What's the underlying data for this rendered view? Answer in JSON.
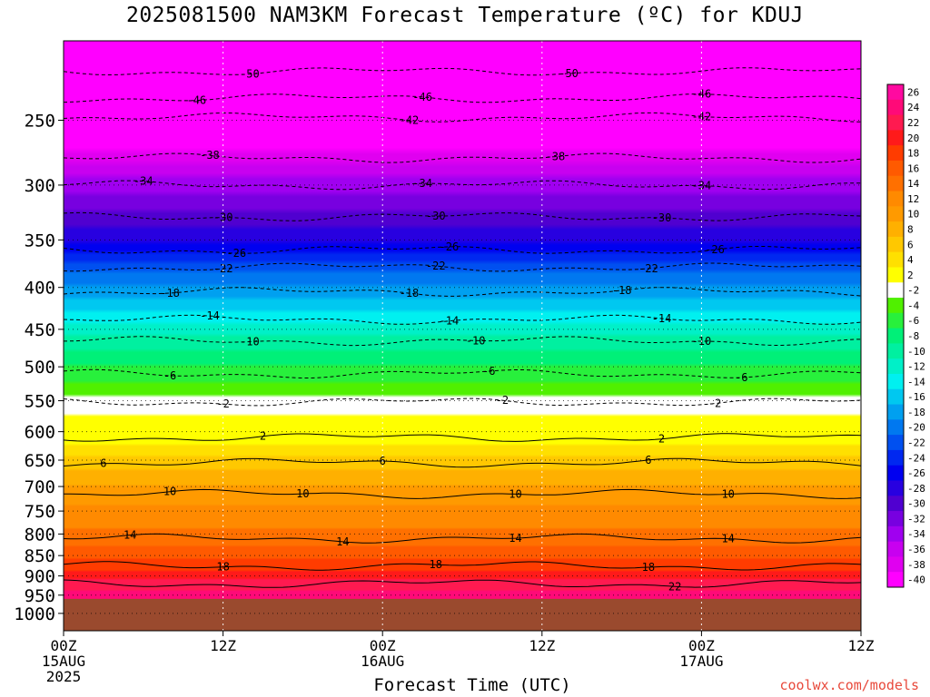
{
  "chart_data": {
    "type": "heatmap",
    "title": "2025081500 NAM3KM Forecast Temperature (ºC) for KDUJ",
    "xlabel": "Forecast Time (UTC)",
    "ylabel": "",
    "x_ticks": [
      {
        "line1": "00Z",
        "line2": "15AUG",
        "line3": "2025",
        "hour": 0
      },
      {
        "line1": "12Z",
        "line2": "",
        "line3": "",
        "hour": 12
      },
      {
        "line1": "00Z",
        "line2": "16AUG",
        "line3": "",
        "hour": 24
      },
      {
        "line1": "12Z",
        "line2": "",
        "line3": "",
        "hour": 36
      },
      {
        "line1": "00Z",
        "line2": "17AUG",
        "line3": "",
        "hour": 48
      },
      {
        "line1": "12Z",
        "line2": "",
        "line3": "",
        "hour": 60
      }
    ],
    "xlim_hours": [
      0,
      60
    ],
    "y_ticks": [
      250,
      300,
      350,
      400,
      450,
      500,
      550,
      600,
      650,
      700,
      750,
      800,
      850,
      900,
      950,
      1000
    ],
    "ylim_hpa": [
      200,
      1050
    ],
    "y_scale": "log-pressure",
    "ground_level_hpa": 960,
    "colorbar_labels": [
      26,
      24,
      22,
      20,
      18,
      16,
      14,
      12,
      10,
      8,
      6,
      4,
      2,
      -2,
      -4,
      -6,
      -8,
      -10,
      -12,
      -14,
      -16,
      -18,
      -20,
      -22,
      -24,
      -26,
      -28,
      -30,
      -32,
      -34,
      -36,
      -38,
      -40
    ],
    "colorbar_colors": [
      "#ff0aa0",
      "#ff0a78",
      "#ff1a50",
      "#ff1a1a",
      "#ff3c00",
      "#ff5a00",
      "#ff7000",
      "#ff8a00",
      "#ff9a00",
      "#ffb000",
      "#ffc800",
      "#ffe000",
      "#ffff00",
      "#ffffff",
      "#50f000",
      "#28f03c",
      "#00f078",
      "#00f0a0",
      "#00f0c8",
      "#00f0f0",
      "#00c8f0",
      "#00a0f0",
      "#0078f0",
      "#0050f0",
      "#0028f0",
      "#0000f0",
      "#2800e0",
      "#5000d0",
      "#7800e0",
      "#a000f0",
      "#c800f0",
      "#e000f0",
      "#ff00ff"
    ],
    "isotherms": [
      {
        "label": -50,
        "pressure": 218,
        "label_hours": [
          14,
          38
        ]
      },
      {
        "label": -46,
        "pressure": 235,
        "label_hours": [
          10,
          27,
          48
        ]
      },
      {
        "label": -42,
        "pressure": 248,
        "label_hours": [
          26,
          48
        ]
      },
      {
        "label": -38,
        "pressure": 278,
        "label_hours": [
          11,
          37
        ]
      },
      {
        "label": -34,
        "pressure": 300,
        "label_hours": [
          6,
          27,
          48
        ]
      },
      {
        "label": -30,
        "pressure": 328,
        "label_hours": [
          12,
          28,
          45
        ]
      },
      {
        "label": -26,
        "pressure": 360,
        "label_hours": [
          13,
          29,
          49
        ]
      },
      {
        "label": -22,
        "pressure": 378,
        "label_hours": [
          12,
          28,
          44
        ]
      },
      {
        "label": -18,
        "pressure": 405,
        "label_hours": [
          8,
          26,
          42
        ]
      },
      {
        "label": -14,
        "pressure": 438,
        "label_hours": [
          11,
          29,
          45
        ]
      },
      {
        "label": -10,
        "pressure": 465,
        "label_hours": [
          14,
          31,
          48
        ]
      },
      {
        "label": -6,
        "pressure": 510,
        "label_hours": [
          8,
          32,
          51
        ]
      },
      {
        "label": -2,
        "pressure": 552,
        "label_hours": [
          12,
          33,
          49
        ]
      },
      {
        "label": 2,
        "pressure": 610,
        "label_hours": [
          15,
          45
        ]
      },
      {
        "label": 6,
        "pressure": 655,
        "label_hours": [
          3,
          24,
          44
        ]
      },
      {
        "label": 10,
        "pressure": 715,
        "label_hours": [
          8,
          18,
          34,
          50
        ]
      },
      {
        "label": 14,
        "pressure": 810,
        "label_hours": [
          5,
          21,
          34,
          50
        ]
      },
      {
        "label": 18,
        "pressure": 875,
        "label_hours": [
          12,
          28,
          44
        ]
      },
      {
        "label": 22,
        "pressure": 920,
        "label_hours": [
          46
        ]
      }
    ],
    "grid": true
  },
  "watermark": "coolwx.com/models"
}
